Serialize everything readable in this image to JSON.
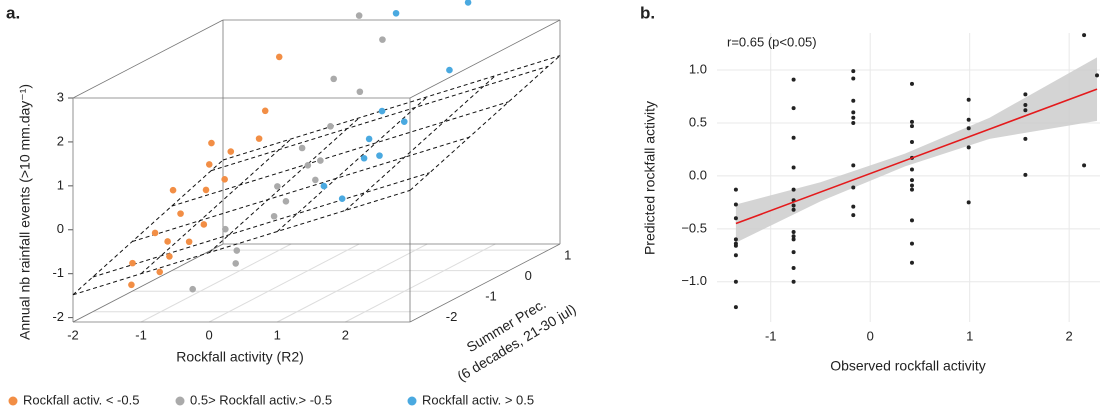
{
  "chart_data": [
    {
      "type": "scatter3d",
      "panel_label": "a.",
      "x_label": "Rockfall activity (R2)",
      "y_label": [
        "Summer Prec.",
        "(6 decades, 21-30 jul)"
      ],
      "z_label": "Annual nb rainfall events (>10 mm.day⁻¹)",
      "xlim": [
        -2,
        2.95
      ],
      "ylim": [
        -2.5,
        1.3
      ],
      "zlim": [
        -2.1,
        3
      ],
      "xticks": [
        -2,
        -1,
        0,
        1,
        2
      ],
      "yticks": [
        -2,
        -1,
        0,
        1
      ],
      "zticks": [
        -2,
        -1,
        0,
        1,
        2,
        3
      ],
      "fit_plane": {
        "intercept": 0.33,
        "x_coef": 0.48,
        "y_coef": 0.34
      },
      "series": [
        {
          "name": "Rockfall activ. < -0.5",
          "color": "#f28e45",
          "x": [
            -1.3,
            -1.2,
            -1.0,
            -0.9,
            -1.4,
            -0.8,
            -0.7,
            -1.1,
            -0.6,
            -1.3,
            -0.9,
            -0.7,
            -1.2,
            -0.8,
            -1.0,
            -0.6,
            -0.9,
            -0.7
          ],
          "y": [
            -2.2,
            -1.8,
            -1.5,
            -2.0,
            -1.0,
            -1.2,
            -2.3,
            -0.6,
            -1.6,
            -0.2,
            -0.4,
            -0.9,
            -2.4,
            0.3,
            1.0,
            -0.2,
            -2.2,
            -1.8
          ],
          "z": [
            -0.9,
            -0.4,
            -0.1,
            -0.5,
            0.2,
            0.3,
            -0.7,
            0.6,
            -0.3,
            0.9,
            0.8,
            0.4,
            -1.3,
            1.4,
            2.3,
            1.0,
            -1.1,
            -0.6
          ]
        },
        {
          "name": "0.5> Rockfall activ.> -0.5",
          "color": "#aaaaaa",
          "x": [
            -0.3,
            0.0,
            0.2,
            -0.1,
            0.3,
            0.1,
            -0.2,
            0.4,
            0.0,
            0.2,
            -0.4,
            0.3,
            0.1,
            -0.2,
            0.4,
            0.0
          ],
          "y": [
            -2.4,
            -1.8,
            -1.2,
            -0.6,
            -0.2,
            0.4,
            1.0,
            1.2,
            0.0,
            -0.9,
            -1.4,
            0.8,
            -2.0,
            0.2,
            -0.5,
            1.3
          ],
          "z": [
            -1.4,
            -0.8,
            -0.3,
            0.1,
            0.5,
            1.0,
            1.8,
            2.6,
            0.3,
            -0.1,
            -0.5,
            1.6,
            -1.0,
            0.6,
            0.2,
            3.1
          ]
        },
        {
          "name": "Rockfall activ. > 0.5",
          "color": "#4aa9e0",
          "x": [
            0.7,
            1.0,
            1.3,
            0.8,
            1.5,
            1.2,
            0.6,
            1.6,
            0.9,
            1.4
          ],
          "y": [
            -0.8,
            -0.3,
            0.2,
            0.5,
            1.0,
            -1.2,
            1.2,
            1.3,
            0.0,
            -0.6
          ],
          "z": [
            0.2,
            0.6,
            1.2,
            1.3,
            2.0,
            0.1,
            3.2,
            3.4,
            0.9,
            0.8
          ]
        }
      ]
    },
    {
      "type": "scatter",
      "panel_label": "b.",
      "annotation": "r=0.65 (p<0.05)",
      "x_label": "Observed rockfall activity",
      "y_label": "Predicted rockfall activity",
      "xlim": [
        -1.54,
        2.31
      ],
      "ylim": [
        -1.38,
        1.35
      ],
      "xticks": [
        -1,
        0,
        1,
        2
      ],
      "yticks": [
        {
          "value": -1,
          "label": "−1.0"
        },
        {
          "value": -0.5,
          "label": "−0.5"
        },
        {
          "value": 0,
          "label": "0.0"
        },
        {
          "value": 0.5,
          "label": "0.5"
        },
        {
          "value": 1,
          "label": "1.0"
        }
      ],
      "color": "#222222",
      "x": [
        -1.35,
        -1.35,
        -1.35,
        -1.35,
        -1.35,
        -1.35,
        -1.35,
        -1.35,
        -1.35,
        -0.77,
        -0.77,
        -0.77,
        -0.77,
        -0.77,
        -0.77,
        -0.77,
        -0.77,
        -0.77,
        -0.77,
        -0.77,
        -0.77,
        -0.77,
        -0.77,
        -0.17,
        -0.17,
        -0.17,
        -0.17,
        -0.17,
        -0.17,
        -0.17,
        -0.17,
        -0.17,
        -0.17,
        0.42,
        0.42,
        0.42,
        0.42,
        0.42,
        0.42,
        0.42,
        0.42,
        0.42,
        0.42,
        0.42,
        0.42,
        0.99,
        0.99,
        0.99,
        0.99,
        0.99,
        1.56,
        1.56,
        1.56,
        1.56,
        1.56,
        2.15,
        2.15,
        2.28
      ],
      "values": [
        -0.13,
        -0.27,
        -0.4,
        -0.6,
        -0.64,
        -0.66,
        -0.75,
        -1.0,
        -1.24,
        0.91,
        0.64,
        0.36,
        0.08,
        -0.13,
        -0.23,
        -0.28,
        -0.32,
        -0.53,
        -0.57,
        -0.6,
        -0.72,
        -0.87,
        -1.0,
        0.99,
        0.92,
        0.71,
        0.6,
        0.55,
        0.5,
        0.1,
        -0.11,
        -0.29,
        -0.37,
        0.87,
        0.51,
        0.47,
        0.32,
        0.17,
        0.06,
        -0.04,
        -0.09,
        -0.13,
        -0.42,
        -0.64,
        -0.82,
        0.72,
        0.53,
        0.45,
        0.27,
        -0.25,
        0.77,
        0.67,
        0.62,
        0.35,
        0.01,
        1.33,
        0.1,
        0.95
      ],
      "fit": {
        "color": "#e41a1c",
        "x": [
          -1.35,
          2.28
        ],
        "values": [
          -0.45,
          0.82
        ]
      },
      "band": {
        "color": "#cccccc",
        "x": [
          -1.35,
          -0.5,
          0.35,
          1.2,
          2.28
        ],
        "upper": [
          -0.27,
          -0.06,
          0.21,
          0.55,
          1.12
        ],
        "lower": [
          -0.63,
          -0.24,
          0.09,
          0.35,
          0.52
        ]
      },
      "grid": true
    }
  ]
}
